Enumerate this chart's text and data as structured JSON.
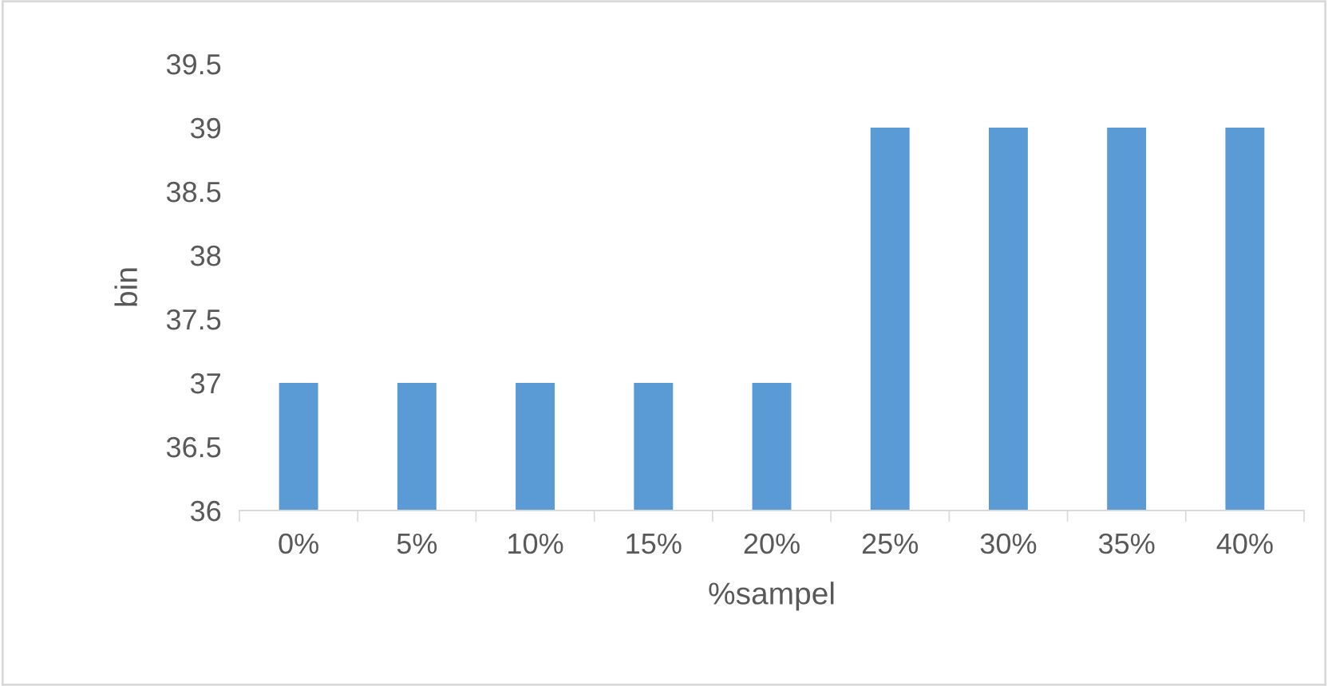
{
  "chart_data": {
    "type": "bar",
    "xlabel": "%sampel",
    "ylabel": "bin",
    "categories": [
      "0%",
      "5%",
      "10%",
      "15%",
      "20%",
      "25%",
      "30%",
      "35%",
      "40%"
    ],
    "values": [
      37,
      37,
      37,
      37,
      37,
      39,
      39,
      39,
      39
    ],
    "color": "#5b9bd5",
    "ylim": [
      36,
      39.5
    ],
    "yticks": [
      36,
      36.5,
      37,
      37.5,
      38,
      38.5,
      39,
      39.5
    ],
    "grid": false,
    "legend": false
  }
}
